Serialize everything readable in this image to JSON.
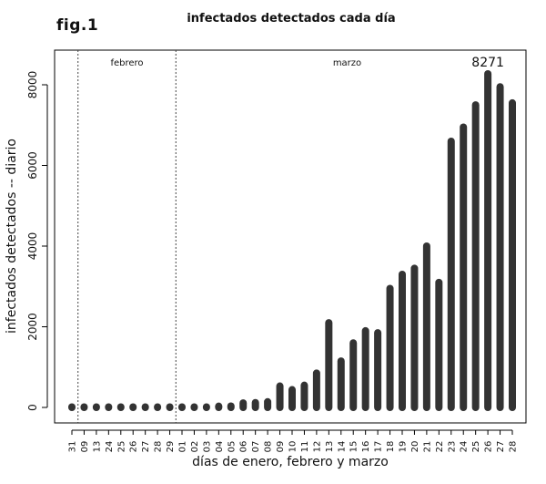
{
  "figure_label": "fig.1",
  "chart_data": {
    "type": "bar",
    "title": "infectados detectados cada día",
    "xlabel": "días de enero, febrero y marzo",
    "ylabel": "infectados detectados -- diario",
    "ylim": [
      0,
      8700
    ],
    "yticks": [
      0,
      2000,
      4000,
      6000,
      8000
    ],
    "grid": false,
    "categories": [
      "31",
      "09",
      "13",
      "24",
      "25",
      "26",
      "27",
      "28",
      "29",
      "01",
      "02",
      "03",
      "04",
      "05",
      "06",
      "07",
      "08",
      "09",
      "10",
      "11",
      "12",
      "13",
      "14",
      "15",
      "16",
      "17",
      "18",
      "19",
      "20",
      "21",
      "22",
      "23",
      "24",
      "25",
      "26",
      "27",
      "28"
    ],
    "values": [
      0,
      0,
      0,
      0,
      0,
      0,
      0,
      0,
      0,
      0,
      0,
      0,
      30,
      35,
      110,
      120,
      140,
      530,
      440,
      550,
      850,
      2100,
      1150,
      1600,
      1900,
      1850,
      2950,
      3300,
      3450,
      4000,
      3100,
      6600,
      6950,
      7500,
      8271,
      7950,
      7550
    ],
    "month_labels": [
      {
        "label": "febrero",
        "start_index": 1,
        "end_index": 8
      },
      {
        "label": "marzo",
        "start_index": 9,
        "end_index": 36
      }
    ],
    "separators_after_index": [
      0,
      8
    ],
    "annotations": [
      {
        "text": "8271",
        "category_index": 34
      }
    ],
    "bar_color": "#333333"
  }
}
